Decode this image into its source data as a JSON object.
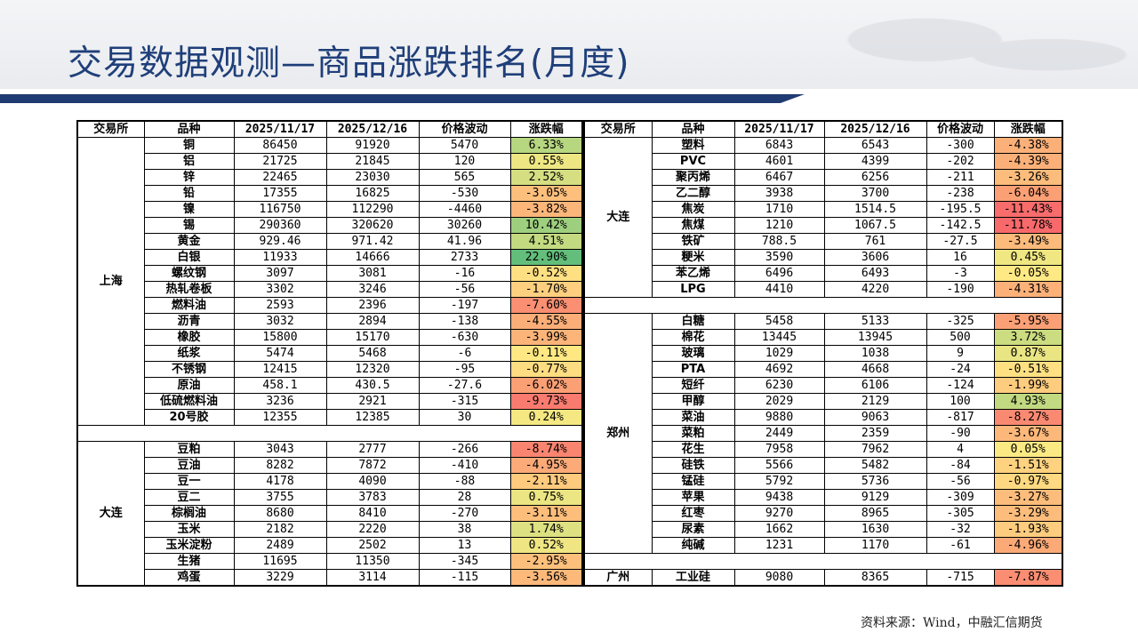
{
  "title": "交易数据观测—商品涨跌排名(月度)",
  "source": "资料来源：Wind，中融汇信期货",
  "headers": [
    "交易所",
    "品种",
    "2025/11/17",
    "2025/12/16",
    "价格波动",
    "涨跌幅"
  ],
  "left_groups": [
    {
      "exchange": "上海",
      "rows": [
        [
          "铜",
          "86450",
          "91920",
          "5470",
          "6.33%"
        ],
        [
          "铝",
          "21725",
          "21845",
          "120",
          "0.55%"
        ],
        [
          "锌",
          "22465",
          "23030",
          "565",
          "2.52%"
        ],
        [
          "铅",
          "17355",
          "16825",
          "-530",
          "-3.05%"
        ],
        [
          "镍",
          "116750",
          "112290",
          "-4460",
          "-3.82%"
        ],
        [
          "锡",
          "290360",
          "320620",
          "30260",
          "10.42%"
        ],
        [
          "黄金",
          "929.46",
          "971.42",
          "41.96",
          "4.51%"
        ],
        [
          "白银",
          "11933",
          "14666",
          "2733",
          "22.90%"
        ],
        [
          "螺纹钢",
          "3097",
          "3081",
          "-16",
          "-0.52%"
        ],
        [
          "热轧卷板",
          "3302",
          "3246",
          "-56",
          "-1.70%"
        ],
        [
          "燃料油",
          "2593",
          "2396",
          "-197",
          "-7.60%"
        ],
        [
          "沥青",
          "3032",
          "2894",
          "-138",
          "-4.55%"
        ],
        [
          "橡胶",
          "15800",
          "15170",
          "-630",
          "-3.99%"
        ],
        [
          "纸浆",
          "5474",
          "5468",
          "-6",
          "-0.11%"
        ],
        [
          "不锈钢",
          "12415",
          "12320",
          "-95",
          "-0.77%"
        ],
        [
          "原油",
          "458.1",
          "430.5",
          "-27.6",
          "-6.02%"
        ],
        [
          "低硫燃料油",
          "3236",
          "2921",
          "-315",
          "-9.73%"
        ],
        [
          "20号胶",
          "12355",
          "12385",
          "30",
          "0.24%"
        ]
      ]
    },
    {
      "exchange": "大连",
      "rows": [
        [
          "豆粕",
          "3043",
          "2777",
          "-266",
          "-8.74%"
        ],
        [
          "豆油",
          "8282",
          "7872",
          "-410",
          "-4.95%"
        ],
        [
          "豆一",
          "4178",
          "4090",
          "-88",
          "-2.11%"
        ],
        [
          "豆二",
          "3755",
          "3783",
          "28",
          "0.75%"
        ],
        [
          "棕榈油",
          "8680",
          "8410",
          "-270",
          "-3.11%"
        ],
        [
          "玉米",
          "2182",
          "2220",
          "38",
          "1.74%"
        ],
        [
          "玉米淀粉",
          "2489",
          "2502",
          "13",
          "0.52%"
        ],
        [
          "生猪",
          "11695",
          "11350",
          "-345",
          "-2.95%"
        ],
        [
          "鸡蛋",
          "3229",
          "3114",
          "-115",
          "-3.56%"
        ]
      ]
    }
  ],
  "right_groups": [
    {
      "exchange": "大连",
      "rows": [
        [
          "塑料",
          "6843",
          "6543",
          "-300",
          "-4.38%"
        ],
        [
          "PVC",
          "4601",
          "4399",
          "-202",
          "-4.39%"
        ],
        [
          "聚丙烯",
          "6467",
          "6256",
          "-211",
          "-3.26%"
        ],
        [
          "乙二醇",
          "3938",
          "3700",
          "-238",
          "-6.04%"
        ],
        [
          "焦炭",
          "1710",
          "1514.5",
          "-195.5",
          "-11.43%"
        ],
        [
          "焦煤",
          "1210",
          "1067.5",
          "-142.5",
          "-11.78%"
        ],
        [
          "铁矿",
          "788.5",
          "761",
          "-27.5",
          "-3.49%"
        ],
        [
          "粳米",
          "3590",
          "3606",
          "16",
          "0.45%"
        ],
        [
          "苯乙烯",
          "6496",
          "6493",
          "-3",
          "-0.05%"
        ],
        [
          "LPG",
          "4410",
          "4220",
          "-190",
          "-4.31%"
        ]
      ]
    },
    {
      "exchange": "郑州",
      "rows": [
        [
          "白糖",
          "5458",
          "5133",
          "-325",
          "-5.95%"
        ],
        [
          "棉花",
          "13445",
          "13945",
          "500",
          "3.72%"
        ],
        [
          "玻璃",
          "1029",
          "1038",
          "9",
          "0.87%"
        ],
        [
          "PTA",
          "4692",
          "4668",
          "-24",
          "-0.51%"
        ],
        [
          "短纤",
          "6230",
          "6106",
          "-124",
          "-1.99%"
        ],
        [
          "甲醇",
          "2029",
          "2129",
          "100",
          "4.93%"
        ],
        [
          "菜油",
          "9880",
          "9063",
          "-817",
          "-8.27%"
        ],
        [
          "菜粕",
          "2449",
          "2359",
          "-90",
          "-3.67%"
        ],
        [
          "花生",
          "7958",
          "7962",
          "4",
          "0.05%"
        ],
        [
          "硅铁",
          "5566",
          "5482",
          "-84",
          "-1.51%"
        ],
        [
          "锰硅",
          "5792",
          "5736",
          "-56",
          "-0.97%"
        ],
        [
          "苹果",
          "9438",
          "9129",
          "-309",
          "-3.27%"
        ],
        [
          "红枣",
          "9270",
          "8965",
          "-305",
          "-3.29%"
        ],
        [
          "尿素",
          "1662",
          "1630",
          "-32",
          "-1.93%"
        ],
        [
          "纯碱",
          "1231",
          "1170",
          "-61",
          "-4.96%"
        ]
      ]
    },
    {
      "exchange": "广州",
      "rows": [
        [
          "工业硅",
          "9080",
          "8365",
          "-715",
          "-7.87%"
        ]
      ]
    }
  ],
  "heatmap_colors": {
    "most_negative": "#f8696b",
    "neutral": "#ffeb84",
    "most_positive": "#63be7b"
  }
}
